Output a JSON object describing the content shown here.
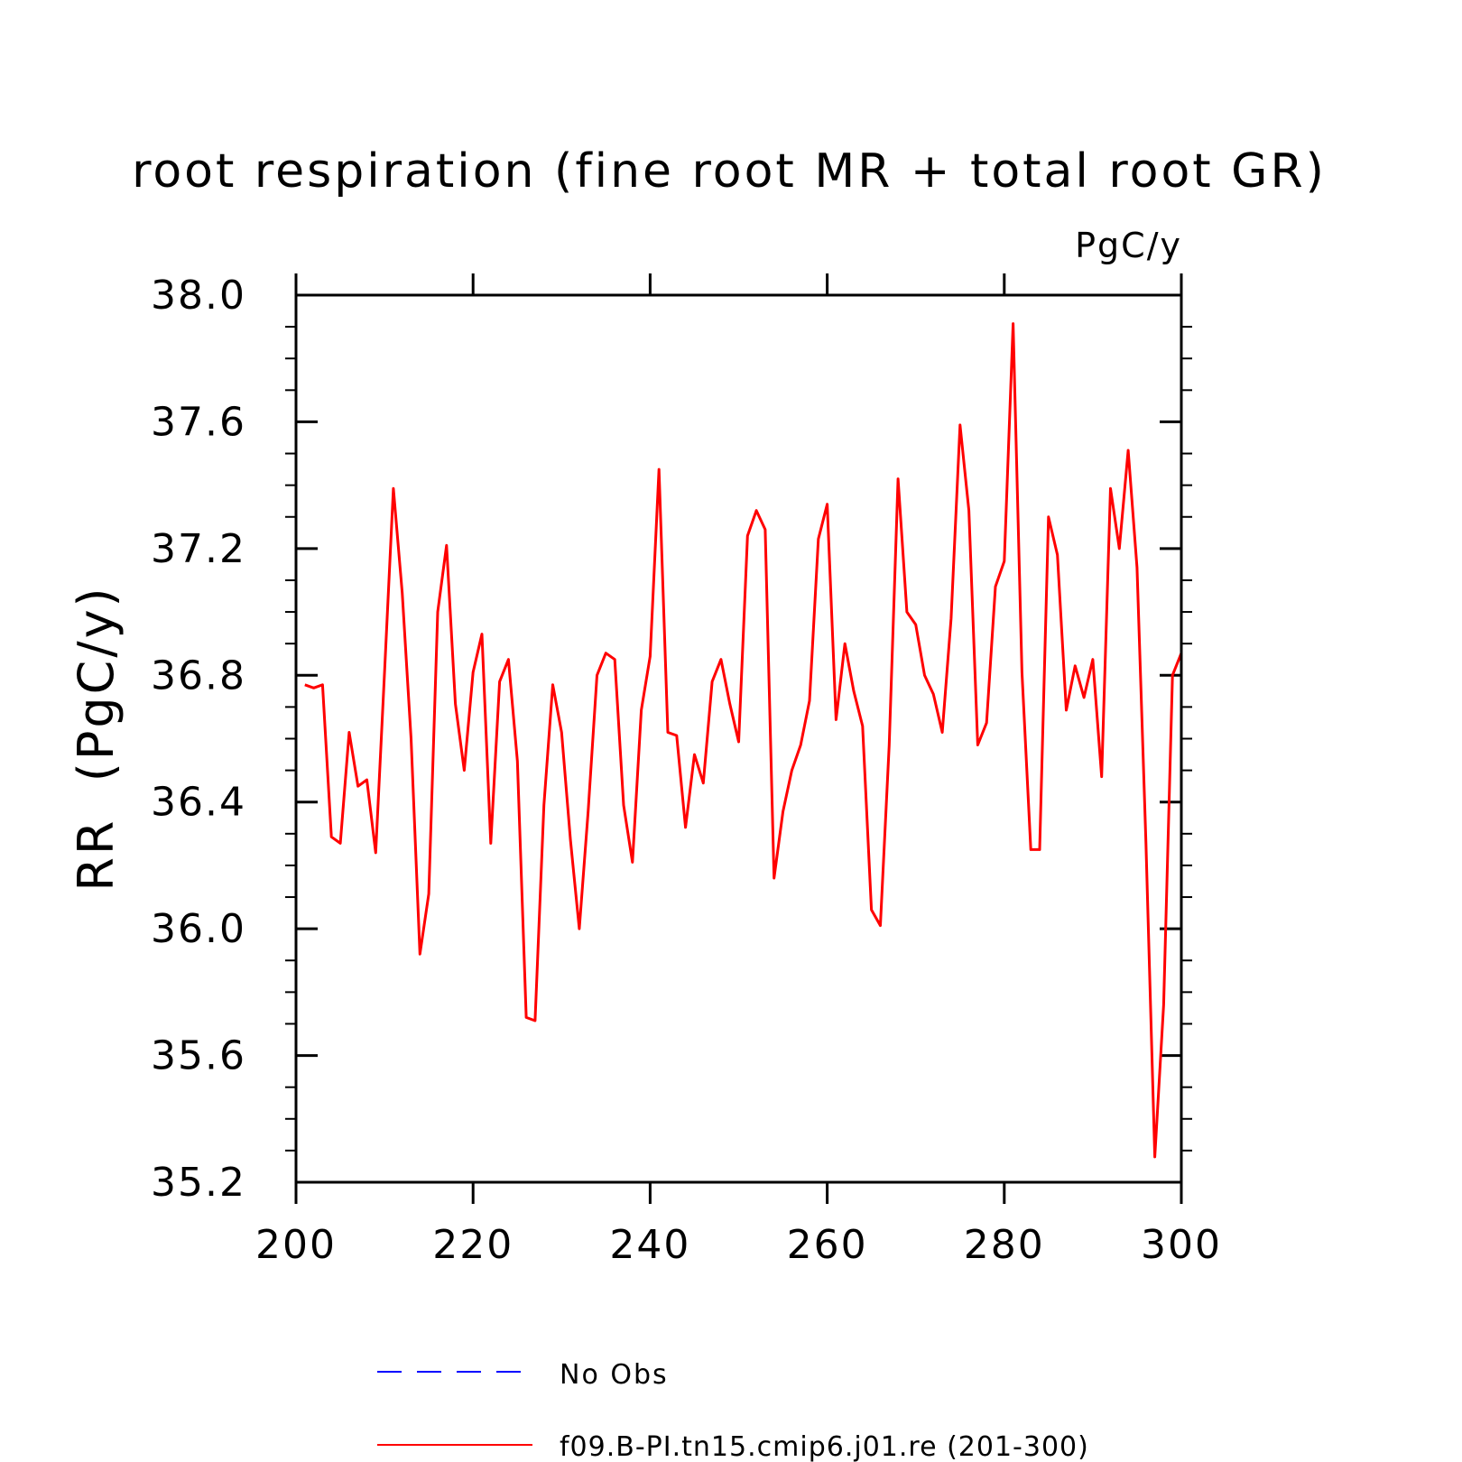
{
  "chart_data": {
    "type": "line",
    "title": "root respiration (fine root MR + total root GR)",
    "units": "PgC/y",
    "ylabel": "RR  (PgC/y)",
    "xlabel": "",
    "xlim": [
      200,
      300
    ],
    "ylim": [
      35.2,
      38.0
    ],
    "x_ticks": [
      "200",
      "220",
      "240",
      "260",
      "280",
      "300"
    ],
    "y_ticks": [
      "35.2",
      "35.6",
      "36.0",
      "36.4",
      "36.8",
      "37.2",
      "37.6",
      "38.0"
    ],
    "legend": [
      {
        "label": "No Obs",
        "color": "#0000ff",
        "style": "dashed"
      },
      {
        "label": "f09.B-PI.tn15.cmip6.j01.re (201-300)",
        "color": "#ff0000",
        "style": "solid"
      }
    ],
    "series": [
      {
        "name": "f09.B-PI.tn15.cmip6.j01.re (201-300)",
        "color": "#ff0000",
        "x": [
          201,
          202,
          203,
          204,
          205,
          206,
          207,
          208,
          209,
          210,
          211,
          212,
          213,
          214,
          215,
          216,
          217,
          218,
          219,
          220,
          221,
          222,
          223,
          224,
          225,
          226,
          227,
          228,
          229,
          230,
          231,
          232,
          233,
          234,
          235,
          236,
          237,
          238,
          239,
          240,
          241,
          242,
          243,
          244,
          245,
          246,
          247,
          248,
          249,
          250,
          251,
          252,
          253,
          254,
          255,
          256,
          257,
          258,
          259,
          260,
          261,
          262,
          263,
          264,
          265,
          266,
          267,
          268,
          269,
          270,
          271,
          272,
          273,
          274,
          275,
          276,
          277,
          278,
          279,
          280,
          281,
          282,
          283,
          284,
          285,
          286,
          287,
          288,
          289,
          290,
          291,
          292,
          293,
          294,
          295,
          296,
          297,
          298,
          299,
          300
        ],
        "values": [
          36.77,
          36.76,
          36.77,
          36.29,
          36.27,
          36.62,
          36.45,
          36.47,
          36.24,
          36.81,
          37.39,
          37.06,
          36.6,
          35.92,
          36.11,
          37.0,
          37.21,
          36.71,
          36.5,
          36.81,
          36.93,
          36.27,
          36.78,
          36.85,
          36.53,
          35.72,
          35.71,
          36.39,
          36.77,
          36.62,
          36.28,
          36.0,
          36.37,
          36.8,
          36.87,
          36.85,
          36.39,
          36.21,
          36.69,
          36.86,
          37.45,
          36.62,
          36.61,
          36.32,
          36.55,
          36.46,
          36.78,
          36.85,
          36.71,
          36.59,
          37.24,
          37.32,
          37.26,
          36.16,
          36.37,
          36.5,
          36.58,
          36.72,
          37.23,
          37.34,
          36.66,
          36.9,
          36.75,
          36.64,
          36.06,
          36.01,
          36.58,
          37.42,
          37.0,
          36.96,
          36.8,
          36.74,
          36.62,
          36.98,
          37.59,
          37.32,
          36.58,
          36.65,
          37.08,
          37.16,
          37.91,
          36.81,
          36.25,
          36.25,
          37.3,
          37.18,
          36.69,
          36.83,
          36.73,
          36.85,
          36.48,
          37.39,
          37.2,
          37.51,
          37.14,
          36.27,
          35.28,
          35.76,
          36.8,
          36.87
        ]
      }
    ]
  }
}
